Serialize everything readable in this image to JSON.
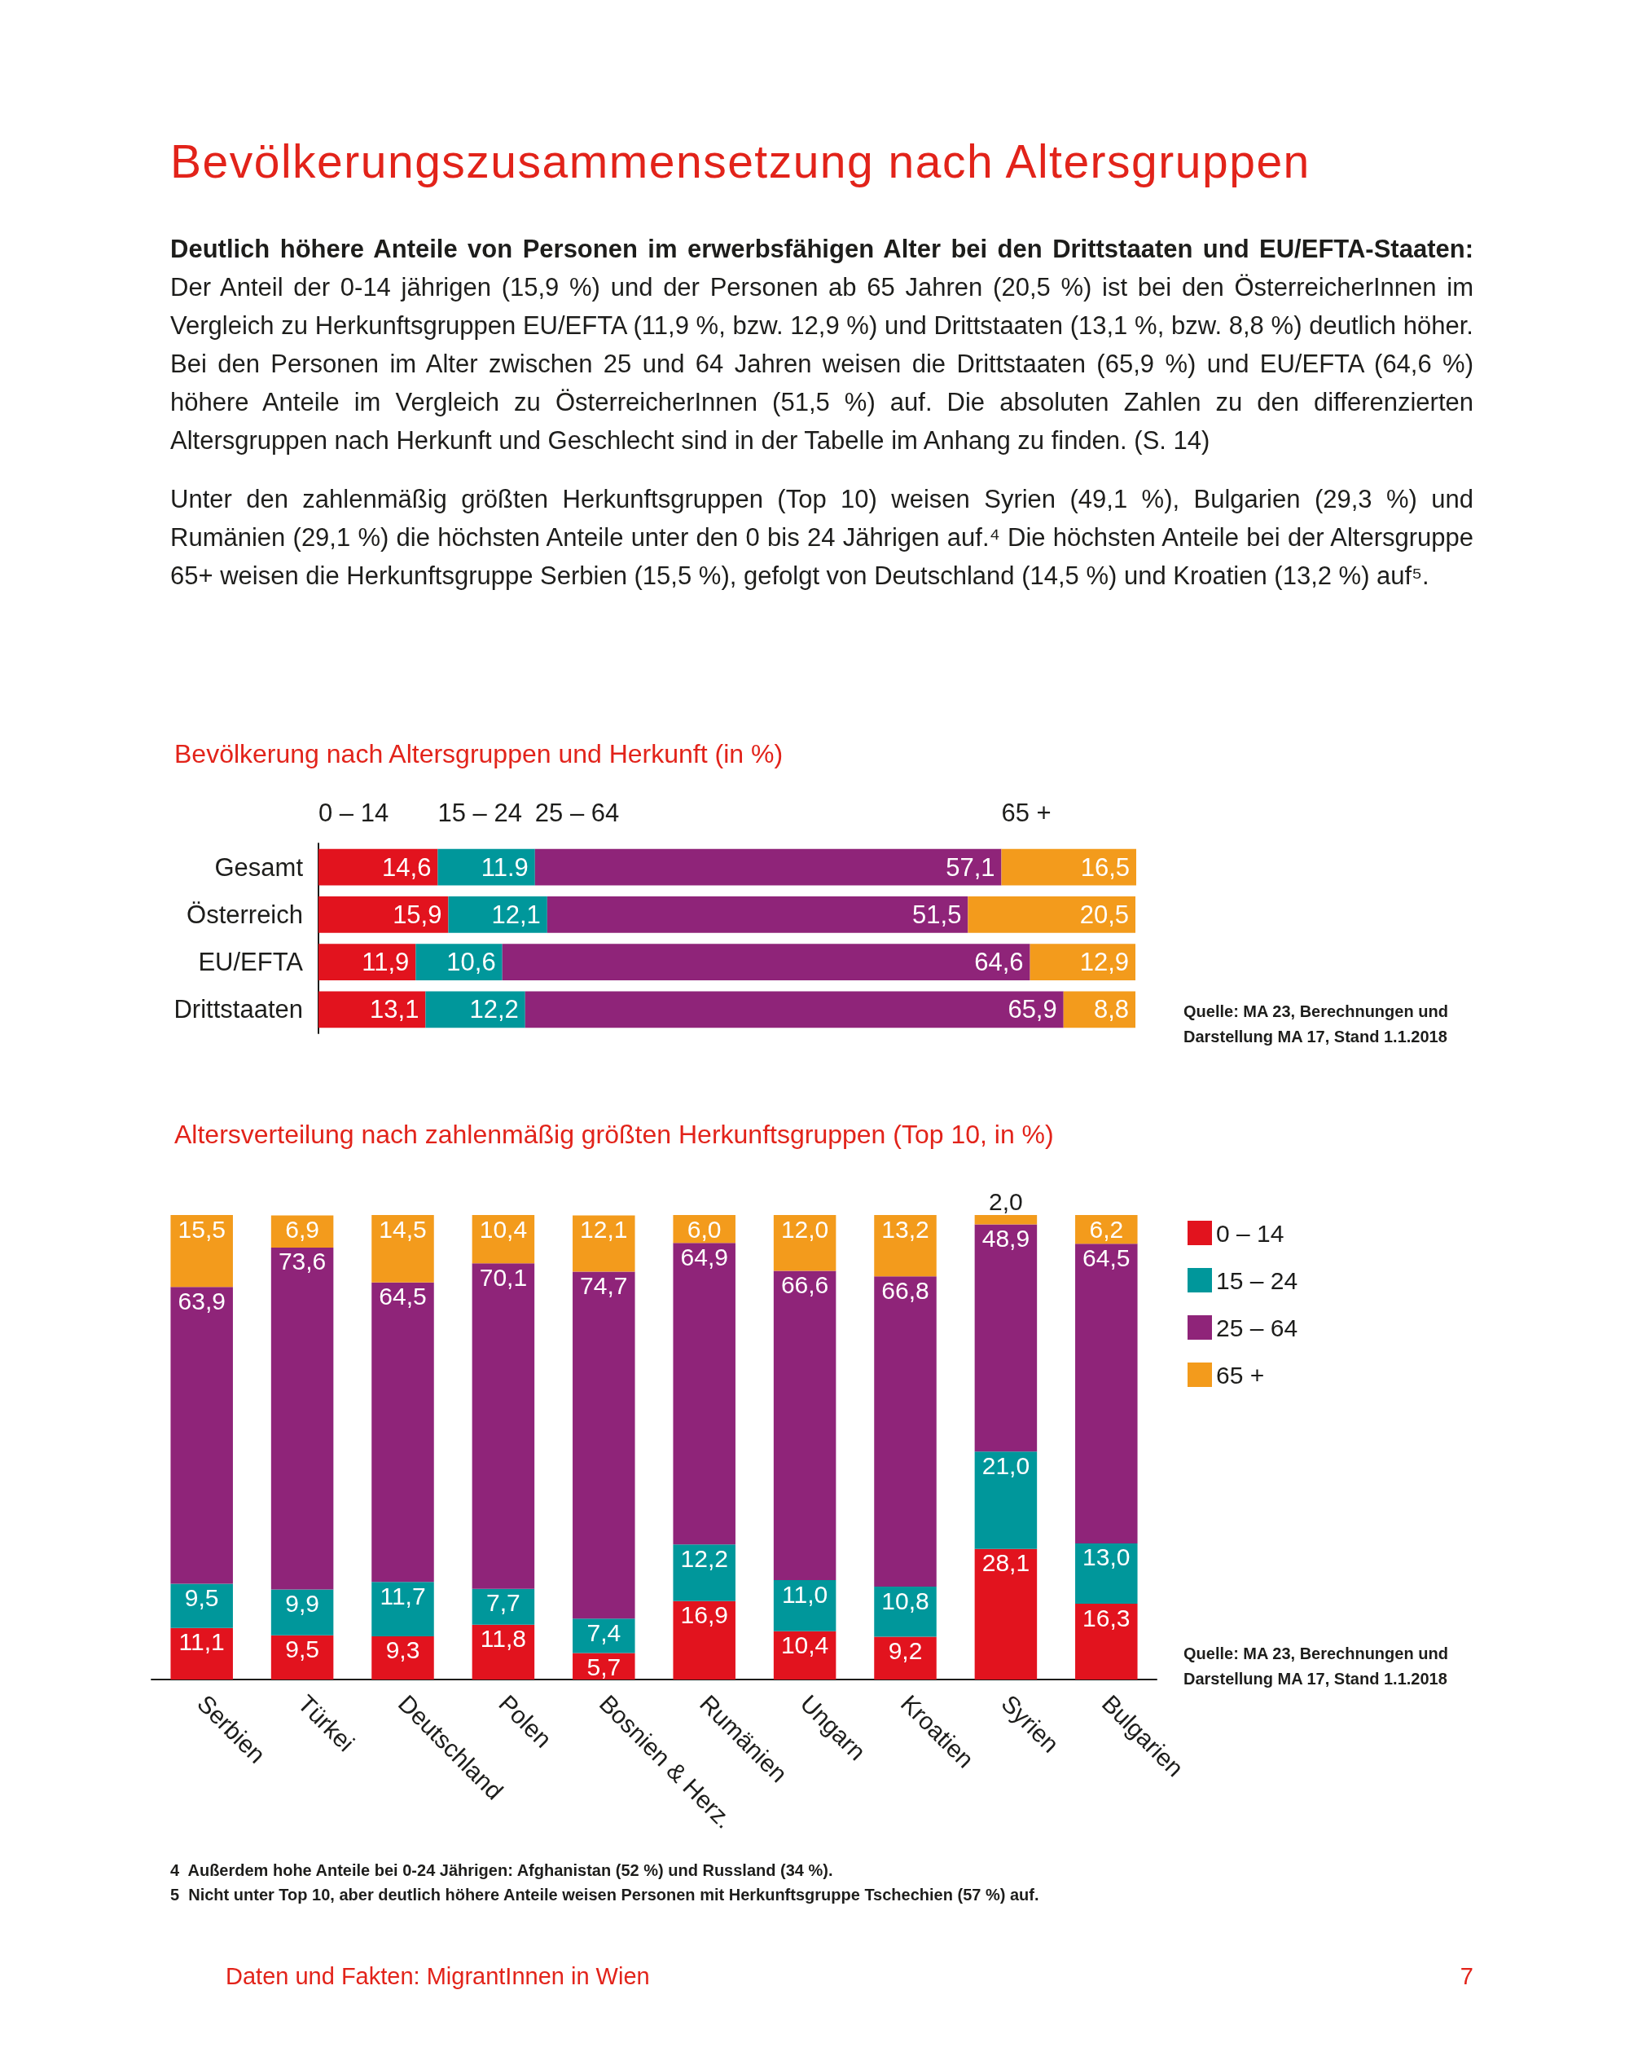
{
  "chart_data": [
    {
      "type": "other",
      "title": "Bevölkerungszusammensetzung nach Altersgruppen",
      "annotations": [
        "Deutlich höhere Anteile von Personen im erwerbsfähigen Alter bei den Drittstaaten und EU/EFTA-Staaten:",
        "Der Anteil der 0-14 jährigen (15,9 %) und der Personen ab 65 Jahren (20,5 %) ist bei den ÖsterreicherInnen im Vergleich zu Herkunftsgruppen EU/EFTA (11,9 %, bzw. 12,9 %) und Drittstaaten (13,1 %, bzw. 8,8 %) deutlich höher. Bei den Personen im Alter zwischen 25 und 64 Jahren weisen die Drittstaaten (65,9 %) und EU/EFTA (64,6 %) höhere Anteile im Vergleich zu ÖsterreicherInnen (51,5 %) auf. Die absoluten Zahlen zu den differenzierten Altersgruppen nach Herkunft und Geschlecht sind in der Tabelle im Anhang zu finden. (S. 14)",
        "Unter den zahlenmäßig größten Herkunftsgruppen (Top 10) weisen Syrien (49,1 %), Bulgarien (29,3 %) und Rumänien (29,1 %) die höchsten Anteile unter den 0 bis 24 Jährigen auf.⁴ Die höchsten Anteile bei der Altersgruppe 65+ weisen die Herkunftsgruppe Serbien (15,5 %), gefolgt von Deutschland (14,5 %) und Kroatien (13,2 %) auf⁵."
      ]
    },
    {
      "type": "bar",
      "orientation": "horizontal",
      "stacked": true,
      "title": "Bevölkerung nach Altersgruppen und Herkunft (in %)",
      "categories": [
        "Gesamt",
        "Österreich",
        "EU/EFTA",
        "Drittstaaten"
      ],
      "series": [
        {
          "name": "0 – 14",
          "color": "#e2131e",
          "values": [
            14.6,
            15.9,
            11.9,
            13.1
          ],
          "value_labels": [
            "14,6",
            "15,9",
            "11,9",
            "13,1"
          ]
        },
        {
          "name": "15 – 24",
          "color": "#00979b",
          "values": [
            11.9,
            12.1,
            10.6,
            12.2
          ],
          "value_labels": [
            "11.9",
            "12,1",
            "10,6",
            "12,2"
          ]
        },
        {
          "name": "25 – 64",
          "color": "#8f2479",
          "values": [
            57.1,
            51.5,
            64.6,
            65.9
          ],
          "value_labels": [
            "57,1",
            "51,5",
            "64,6",
            "65,9"
          ]
        },
        {
          "name": "65 +",
          "color": "#f39b1c",
          "values": [
            16.5,
            20.5,
            12.9,
            8.8
          ],
          "value_labels": [
            "16,5",
            "20,5",
            "12,9",
            "8,8"
          ]
        }
      ],
      "xlim": [
        0,
        100.1
      ],
      "tick_labels": "y",
      "legend": "top",
      "annotations": [
        "Quelle: MA 23, Berechnungen und Darstellung MA 17, Stand 1.1.2018"
      ]
    },
    {
      "type": "bar",
      "stacked": true,
      "title": "Altersverteilung nach zahlenmäßig größten Herkunftsgruppen (Top 10, in %)",
      "categories": [
        "Serbien",
        "Türkei",
        "Deutschland",
        "Polen",
        "Bosnien & Herz.",
        "Rumänien",
        "Ungarn",
        "Kroatien",
        "Syrien",
        "Bulgarien"
      ],
      "series": [
        {
          "name": "0 – 14",
          "color": "#e2131e",
          "values": [
            11.1,
            9.5,
            9.3,
            11.8,
            5.7,
            16.9,
            10.4,
            9.2,
            28.1,
            16.3
          ],
          "value_labels": [
            "11,1",
            "9,5",
            "9,3",
            "11,8",
            "5,7",
            "16,9",
            "10,4",
            "9,2",
            "28,1",
            "16,3"
          ]
        },
        {
          "name": "15 – 24",
          "color": "#00979b",
          "values": [
            9.5,
            9.9,
            11.7,
            7.7,
            7.4,
            12.2,
            11.0,
            10.8,
            21.0,
            13.0
          ],
          "value_labels": [
            "9,5",
            "9,9",
            "11,7",
            "7,7",
            "7,4",
            "12,2",
            "11,0",
            "10,8",
            "21,0",
            "13,0"
          ]
        },
        {
          "name": "25 – 64",
          "color": "#8f2479",
          "values": [
            63.9,
            73.6,
            64.5,
            70.1,
            74.7,
            64.9,
            66.6,
            66.8,
            48.9,
            64.5
          ],
          "value_labels": [
            "63,9",
            "73,6",
            "64,5",
            "70,1",
            "74,7",
            "64,9",
            "66,6",
            "66,8",
            "48,9",
            "64,5"
          ]
        },
        {
          "name": "65 +",
          "color": "#f39b1c",
          "values": [
            15.5,
            6.9,
            14.5,
            10.4,
            12.1,
            6.0,
            12.0,
            13.2,
            2.0,
            6.2
          ],
          "value_labels": [
            "15,5",
            "6,9",
            "14,5",
            "10,4",
            "12,1",
            "6,0",
            "12,0",
            "13,2",
            "2,0",
            "6,2"
          ]
        }
      ],
      "ylim": [
        0,
        100
      ],
      "tick_labels": "x",
      "legend": "top right",
      "annotations": [
        "Quelle: MA 23, Berechnungen und Darstellung MA 17, Stand 1.1.2018"
      ]
    },
    {
      "type": "other",
      "annotations": [
        "4  Außerdem hohe Anteile bei 0-24 Jährigen: Afghanistan (52 %) und Russland (34 %).",
        "5  Nicht unter Top 10, aber deutlich höhere Anteile weisen Personen mit Herkunftsgruppe Tschechien (57 %) auf.",
        "Daten und Fakten: MigrantInnen in Wien",
        "7"
      ]
    }
  ]
}
